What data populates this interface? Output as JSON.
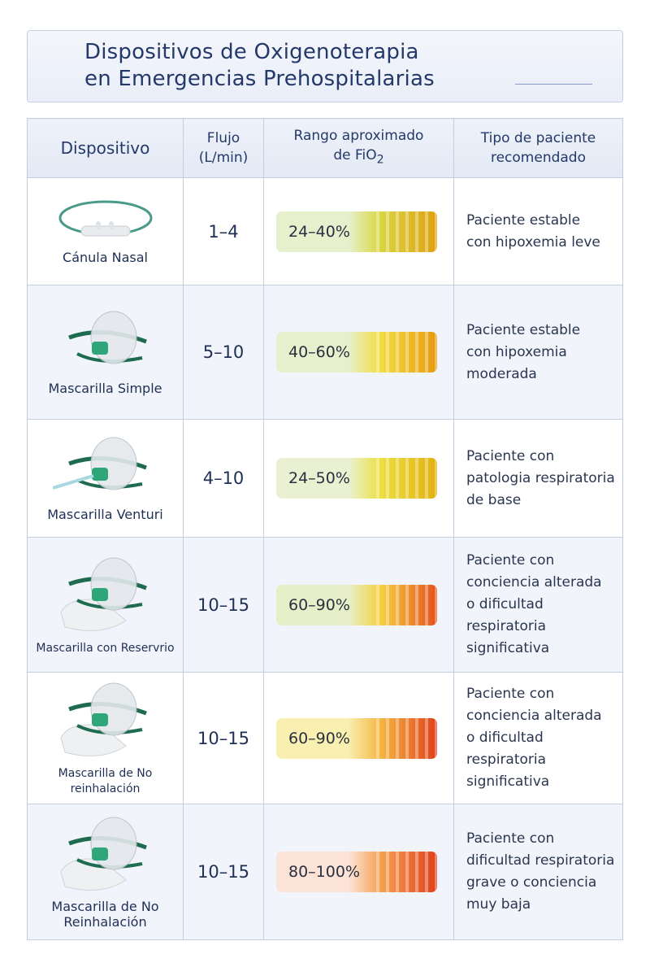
{
  "title": {
    "line1": "Dispositivos de Oxigenoterapia",
    "line2": "en Emergencias Prehospitalarias"
  },
  "headers": {
    "device": "Dispositivo",
    "flow_l1": "Flujo",
    "flow_l2": "(L/min)",
    "range_l1": "Rango aproximado",
    "range_l2": "de FiO",
    "range_sub": "2",
    "patient_l1": "Tipo de paciente",
    "patient_l2": "recomendado"
  },
  "rows": [
    {
      "device": "Cánula Nasal",
      "icon": "nasal-cannula-icon",
      "flow": "1–4",
      "fio2": "24–40%",
      "colors": [
        "#e6f0cc",
        "#d9d640",
        "#e0a010"
      ],
      "patient": [
        "Paciente estable",
        "con hipoxemia leve"
      ]
    },
    {
      "device": "Mascarilla Simple",
      "icon": "simple-mask-icon",
      "flow": "5–10",
      "fio2": "40–60%",
      "colors": [
        "#e6f0cc",
        "#f2dc40",
        "#e79a10"
      ],
      "patient": [
        "Paciente estable",
        "con hipoxemia",
        "moderada"
      ]
    },
    {
      "device": "Mascarilla Venturi",
      "icon": "venturi-mask-icon",
      "flow": "4–10",
      "fio2": "24–50%",
      "colors": [
        "#e9f1d2",
        "#ece040",
        "#e3b010"
      ],
      "patient": [
        "Paciente con",
        "patologia respiratoria",
        "de base"
      ]
    },
    {
      "device": "Mascarilla con Reservrio",
      "icon": "reservoir-mask-icon",
      "flow": "10–15",
      "fio2": "60–90%",
      "colors": [
        "#e6efc8",
        "#f6d040",
        "#e5501a"
      ],
      "patient": [
        "Paciente con",
        "conciencia alterada",
        "o dificultad respiratoria",
        "significativa"
      ]
    },
    {
      "device": "Mascarilla de No reinhalación",
      "icon": "non-rebreather-mask-icon",
      "flow": "10–15",
      "fio2": "60–90%",
      "colors": [
        "#f8efb0",
        "#f5b540",
        "#e0401a"
      ],
      "patient": [
        "Paciente con",
        "conciencia alterada",
        "o dificultad respiratoria",
        "significativa"
      ]
    },
    {
      "device": "Mascarilla de No Reinhalación",
      "icon": "non-rebreather-mask-icon",
      "flow": "10–15",
      "fio2": "80–100%",
      "colors": [
        "#fbe3d8",
        "#f5a050",
        "#e0401a"
      ],
      "patient": [
        "Paciente con",
        "dificultad respiratoria",
        "grave o conciencia",
        "muy baja"
      ]
    }
  ]
}
